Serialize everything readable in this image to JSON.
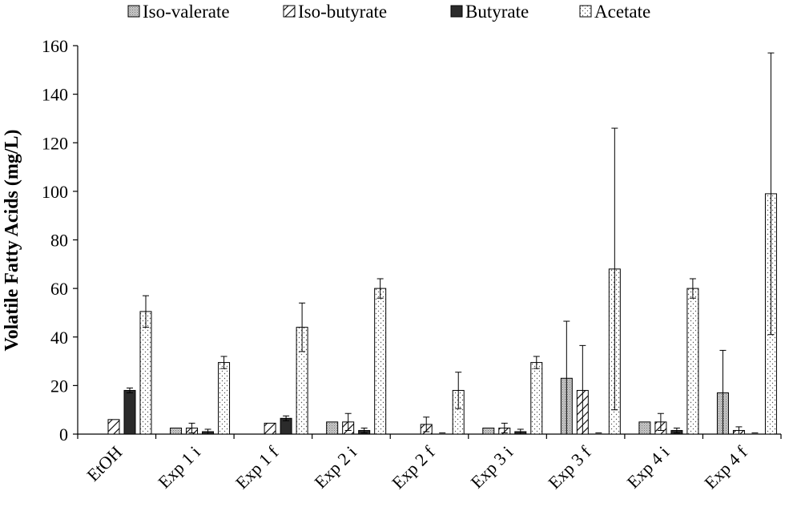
{
  "chart_data": {
    "type": "bar",
    "ylabel": "Volatile Fatty Acids (mg/L)",
    "xlabel": "",
    "ylim": [
      0,
      160
    ],
    "yticks": [
      0,
      20,
      40,
      60,
      80,
      100,
      120,
      140,
      160
    ],
    "grid": false,
    "legend_position": "top",
    "categories": [
      "EtOH",
      "Exp 1 i",
      "Exp 1 f",
      "Exp 2 i",
      "Exp 2 f",
      "Exp 3 i",
      "Exp 3 f",
      "Exp 4 i",
      "Exp 4 f"
    ],
    "series": [
      {
        "name": "Iso-valerate",
        "pattern": "stipple-grey",
        "values": [
          0,
          2.5,
          0,
          5,
          0,
          2.5,
          23,
          5,
          17
        ],
        "errors": [
          0,
          0,
          0,
          0,
          0,
          0,
          23.5,
          0,
          17.5
        ]
      },
      {
        "name": "Iso-butyrate",
        "pattern": "hatch",
        "values": [
          6,
          2.5,
          4.5,
          5,
          4,
          2.5,
          18,
          5,
          1.5
        ],
        "errors": [
          0,
          2,
          0,
          3.5,
          3,
          2,
          18.5,
          3.5,
          1.5
        ]
      },
      {
        "name": "Butyrate",
        "pattern": "solid-black",
        "values": [
          18,
          1,
          6.5,
          1.5,
          0,
          1,
          0,
          1.5,
          0
        ],
        "errors": [
          1,
          1,
          1,
          1,
          0,
          1,
          0,
          1,
          0
        ]
      },
      {
        "name": "Acetate",
        "pattern": "dots",
        "values": [
          50.5,
          29.5,
          44,
          60,
          18,
          29.5,
          68,
          60,
          99
        ],
        "errors": [
          6.5,
          2.5,
          10,
          4,
          7.5,
          2.5,
          58,
          4,
          58
        ],
        "extra_error_marks": [
          0,
          0,
          0,
          0,
          0.5,
          0,
          0.5,
          0,
          0.5
        ]
      }
    ],
    "colors": {
      "axis": "#000000",
      "bar_stroke": "#000000",
      "stipple_fill": "#b4b4b4",
      "solid_fill": "#2b2b2b"
    }
  }
}
